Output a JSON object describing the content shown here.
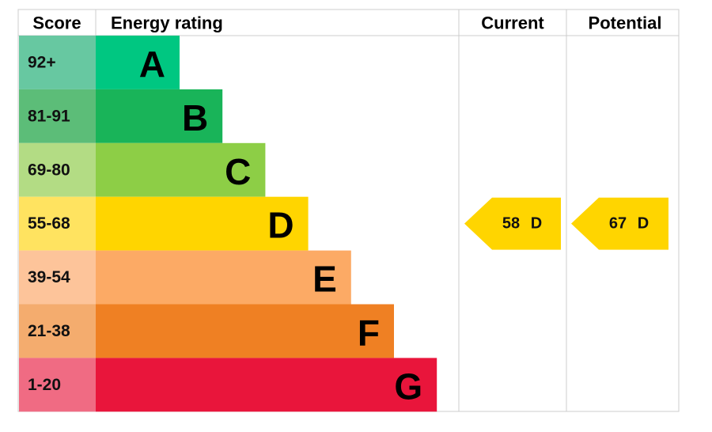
{
  "header": {
    "score": "Score",
    "energy_rating": "Energy rating",
    "current": "Current",
    "potential": "Potential"
  },
  "bands": [
    {
      "score": "92+",
      "letter": "A",
      "color": "#00c781",
      "score_color": "#67c8a1"
    },
    {
      "score": "81-91",
      "letter": "B",
      "color": "#19b459",
      "score_color": "#5cbd78"
    },
    {
      "score": "69-80",
      "letter": "C",
      "color": "#8dce46",
      "score_color": "#b3dc84"
    },
    {
      "score": "55-68",
      "letter": "D",
      "color": "#ffd500",
      "score_color": "#ffe360"
    },
    {
      "score": "39-54",
      "letter": "E",
      "color": "#fcaa65",
      "score_color": "#fdc49a"
    },
    {
      "score": "21-38",
      "letter": "F",
      "color": "#ef8023",
      "score_color": "#f4ac6e"
    },
    {
      "score": "1-20",
      "letter": "G",
      "color": "#e9153b",
      "score_color": "#f06b83"
    }
  ],
  "current": {
    "score": 58,
    "rating": "D",
    "band": 3
  },
  "potential": {
    "score": 67,
    "rating": "D",
    "band": 3
  }
}
